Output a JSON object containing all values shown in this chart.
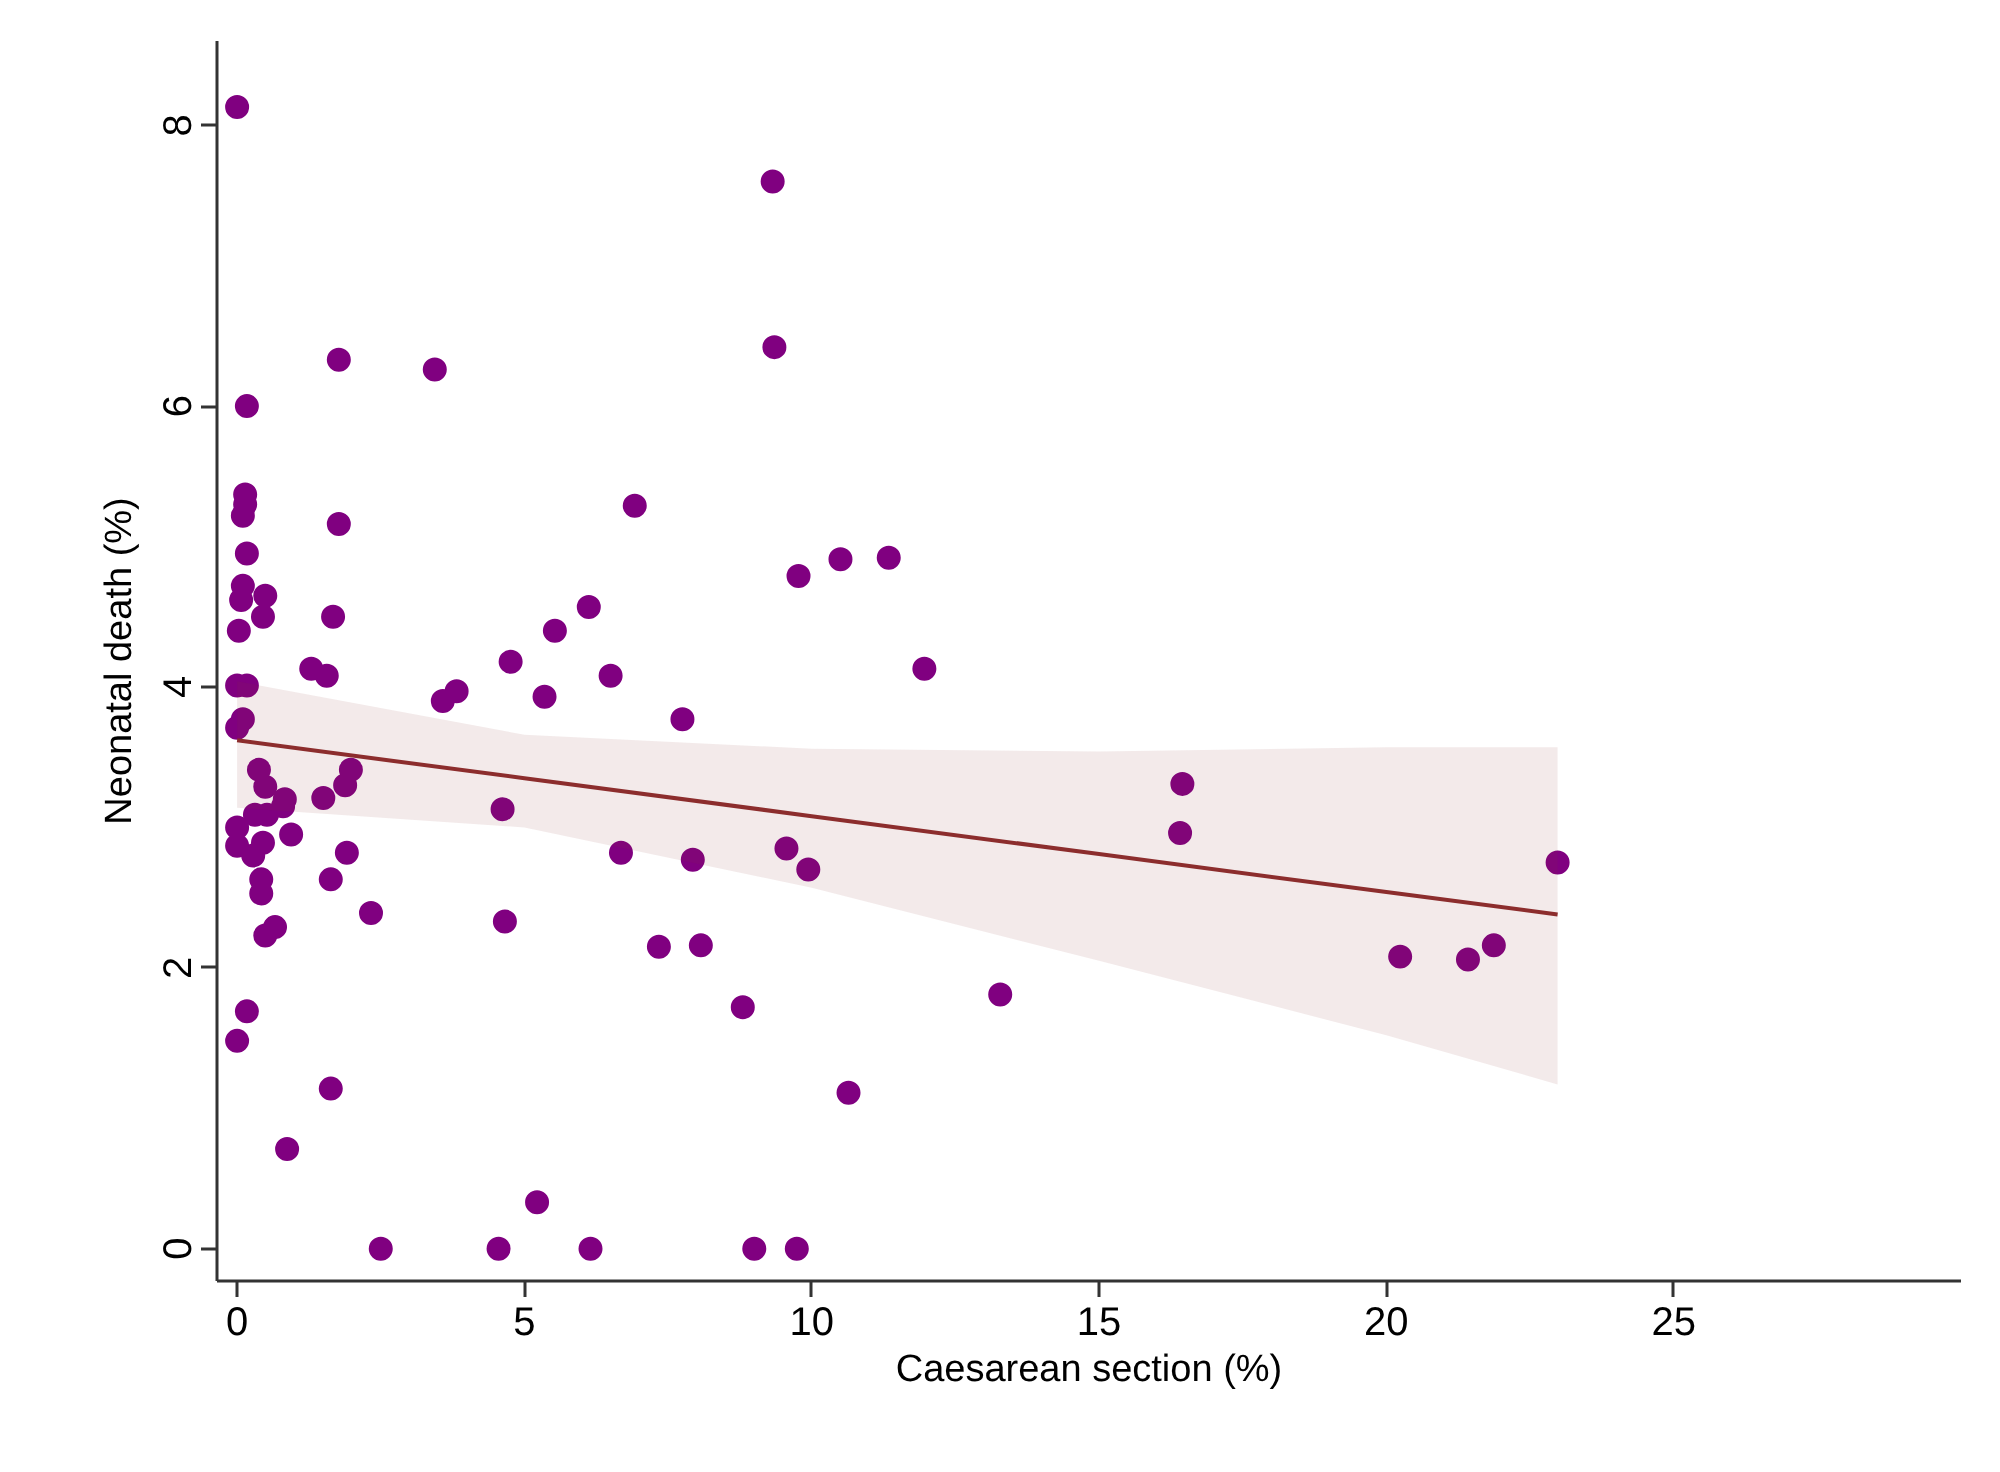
{
  "chart_data": {
    "type": "scatter",
    "xlabel": "Caesarean section (%)",
    "ylabel": "Neonatal death (%)",
    "xlim": [
      -0.35,
      30
    ],
    "ylim": [
      -0.23,
      8.6
    ],
    "xticks": [
      0,
      5,
      10,
      15,
      20,
      25
    ],
    "yticks": [
      0,
      2,
      4,
      6,
      8
    ],
    "grid": false,
    "series": [
      {
        "color": "#800080",
        "marker": "circle",
        "x": [
          0,
          9.32,
          1.77,
          3.44,
          0.17,
          9.35,
          0.14,
          0.14,
          0.1,
          0.17,
          0.1,
          0.49,
          0.07,
          0.45,
          0.03,
          1.77,
          1.67,
          1.29,
          1.56,
          4.76,
          5.53,
          6.12,
          6.5,
          6.92,
          10.5,
          11.34,
          9.77,
          11.96,
          0,
          0.17,
          3.58,
          3.82,
          5.35,
          7.75,
          0,
          0.1,
          0.38,
          0.49,
          0.83,
          0.8,
          1.5,
          1.88,
          1.98,
          0.31,
          0.52,
          0,
          0,
          0.94,
          0.45,
          0.28,
          1.91,
          0.42,
          0.42,
          1.63,
          2.33,
          0.49,
          0.66,
          0.17,
          0,
          1.63,
          0.87,
          4.62,
          6.68,
          7.93,
          9.56,
          9.94,
          4.66,
          7.34,
          8.07,
          8.8,
          13.28,
          10.64,
          5.22,
          2.5,
          4.55,
          6.15,
          9.0,
          9.74,
          16.45,
          16.41,
          22.98,
          20.24,
          21.42,
          21.87
        ],
        "values": [
          8.13,
          7.6,
          6.33,
          6.26,
          6.0,
          6.42,
          5.37,
          5.3,
          5.22,
          4.95,
          4.72,
          4.65,
          4.62,
          4.5,
          4.4,
          5.16,
          4.5,
          4.13,
          4.08,
          4.18,
          4.4,
          4.57,
          4.08,
          5.29,
          4.91,
          4.92,
          4.79,
          4.13,
          4.01,
          4.01,
          3.9,
          3.97,
          3.93,
          3.77,
          3.71,
          3.77,
          3.41,
          3.29,
          3.2,
          3.15,
          3.21,
          3.3,
          3.41,
          3.09,
          3.09,
          3.0,
          2.87,
          2.95,
          2.89,
          2.8,
          2.82,
          2.63,
          2.53,
          2.63,
          2.39,
          2.23,
          2.29,
          1.69,
          1.48,
          1.14,
          0.71,
          3.13,
          2.82,
          2.77,
          2.85,
          2.7,
          2.33,
          2.15,
          2.16,
          1.72,
          1.81,
          1.11,
          0.33,
          0,
          0,
          0,
          0,
          0,
          3.31,
          2.96,
          2.75,
          2.08,
          2.06,
          2.16
        ]
      },
      {
        "type": "line",
        "color": "#8c2d2d",
        "x": [
          0,
          5,
          10,
          15,
          20,
          22.98
        ],
        "values": [
          3.62,
          3.35,
          3.08,
          2.81,
          2.54,
          2.38
        ],
        "lower": [
          3.14,
          3.0,
          2.57,
          2.05,
          1.52,
          1.17
        ],
        "upper": [
          4.04,
          3.66,
          3.56,
          3.54,
          3.57,
          3.57
        ]
      }
    ]
  }
}
